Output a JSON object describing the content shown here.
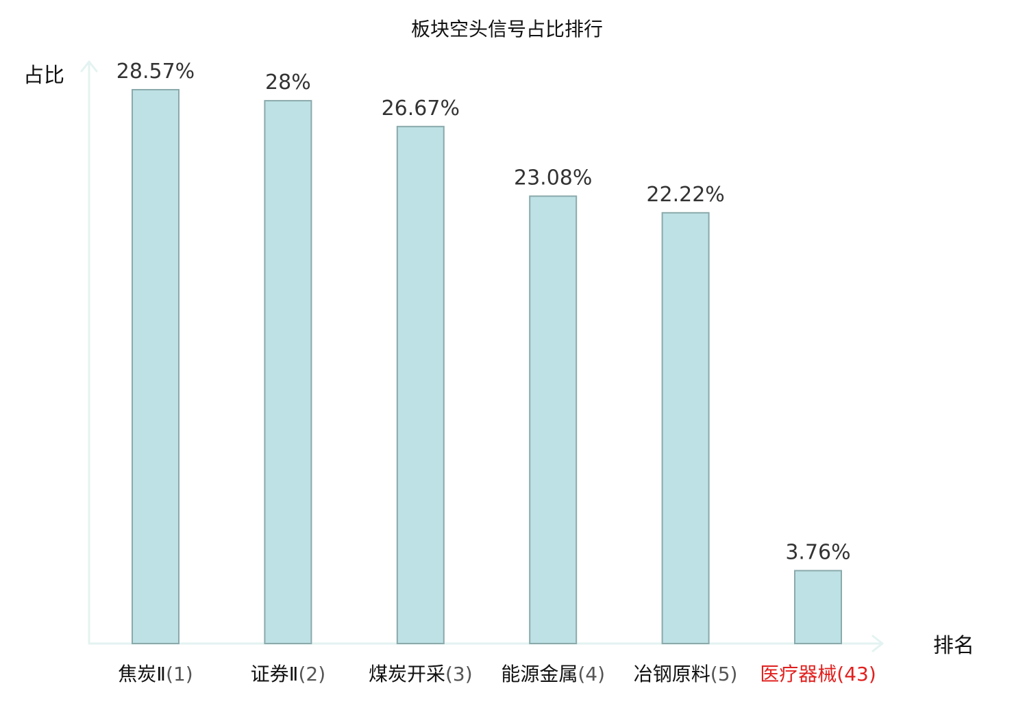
{
  "chart_data": {
    "type": "bar",
    "title": "板块空头信号占比排行",
    "xlabel": "排名",
    "ylabel": "占比",
    "ylim": [
      0,
      30
    ],
    "grid": false,
    "categories": [
      {
        "name": "焦炭Ⅱ",
        "rank": "(1)",
        "highlight": false
      },
      {
        "name": "证券Ⅱ",
        "rank": "(2)",
        "highlight": false
      },
      {
        "name": "煤炭开采",
        "rank": "(3)",
        "highlight": false
      },
      {
        "name": "能源金属",
        "rank": "(4)",
        "highlight": false
      },
      {
        "name": "冶钢原料",
        "rank": "(5)",
        "highlight": false
      },
      {
        "name": "医疗器械",
        "rank": "(43)",
        "highlight": true
      }
    ],
    "values": [
      28.57,
      28,
      26.67,
      23.08,
      22.22,
      3.76
    ],
    "value_labels": [
      "28.57%",
      "28%",
      "26.67%",
      "23.08%",
      "22.22%",
      "3.76%"
    ]
  },
  "colors": {
    "bar_fill": "#bde1e4",
    "bar_stroke": "#8aa9ab",
    "axis": "#e3f3f1",
    "label_text": "#111111",
    "value_text": "#333333",
    "rank_text": "#555555",
    "highlight": "#e0201e"
  }
}
